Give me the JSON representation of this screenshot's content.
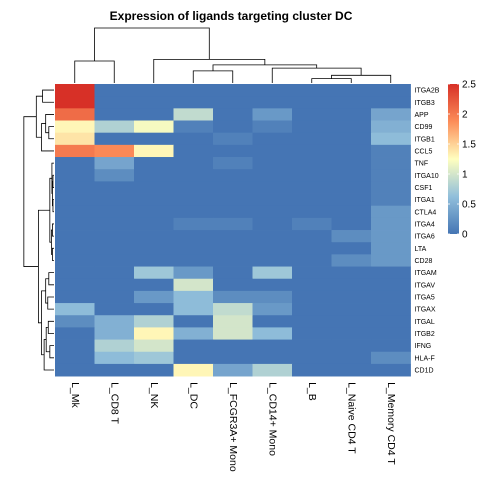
{
  "chart_data": {
    "type": "heatmap",
    "title": "Expression of ligands targeting cluster DC",
    "rows": [
      "ITGA2B",
      "ITGB3",
      "APP",
      "CD99",
      "ITGB1",
      "CCL5",
      "TNF",
      "ITGA10",
      "CSF1",
      "ITGA1",
      "CTLA4",
      "ITGA4",
      "ITGA6",
      "LTA",
      "CD28",
      "ITGAM",
      "ITGAV",
      "ITGA5",
      "ITGAX",
      "ITGAL",
      "ITGB2",
      "IFNG",
      "HLA-F",
      "CD1D"
    ],
    "columns": [
      "L_Mk",
      "L_CD8 T",
      "L_NK",
      "L_DC",
      "L_FCGR3A+ Mono",
      "L_CD14+ Mono",
      "L_B",
      "L_Naive CD4 T",
      "L_Memory CD4 T"
    ],
    "values": [
      [
        2.5,
        0.0,
        0.0,
        0.0,
        0.0,
        0.0,
        0.0,
        0.0,
        0.0
      ],
      [
        2.5,
        0.0,
        0.0,
        0.0,
        0.0,
        0.0,
        0.0,
        0.0,
        0.0
      ],
      [
        2.1,
        0.0,
        0.0,
        0.9,
        0.0,
        0.3,
        0.0,
        0.0,
        0.4
      ],
      [
        1.3,
        0.8,
        1.2,
        0.1,
        0.0,
        0.1,
        0.0,
        0.0,
        0.5
      ],
      [
        1.4,
        0.0,
        0.0,
        0.0,
        0.1,
        0.0,
        0.0,
        0.0,
        0.6
      ],
      [
        2.0,
        1.9,
        1.3,
        0.0,
        0.0,
        0.0,
        0.0,
        0.0,
        0.1
      ],
      [
        0.0,
        0.4,
        0.0,
        0.0,
        0.1,
        0.0,
        0.0,
        0.0,
        0.1
      ],
      [
        0.0,
        0.2,
        0.0,
        0.0,
        0.0,
        0.0,
        0.0,
        0.0,
        0.1
      ],
      [
        0.0,
        0.0,
        0.0,
        0.0,
        0.0,
        0.0,
        0.0,
        0.0,
        0.1
      ],
      [
        0.0,
        0.0,
        0.0,
        0.0,
        0.0,
        0.0,
        0.0,
        0.0,
        0.1
      ],
      [
        0.0,
        0.0,
        0.0,
        0.0,
        0.0,
        0.0,
        0.0,
        0.0,
        0.3
      ],
      [
        0.0,
        0.0,
        0.0,
        0.1,
        0.1,
        0.0,
        0.1,
        0.0,
        0.3
      ],
      [
        0.0,
        0.0,
        0.0,
        0.0,
        0.0,
        0.0,
        0.0,
        0.2,
        0.3
      ],
      [
        0.0,
        0.0,
        0.0,
        0.0,
        0.0,
        0.0,
        0.0,
        0.0,
        0.3
      ],
      [
        0.0,
        0.0,
        0.0,
        0.0,
        0.0,
        0.0,
        0.0,
        0.2,
        0.3
      ],
      [
        0.0,
        0.0,
        0.7,
        0.3,
        0.0,
        0.7,
        0.0,
        0.0,
        0.0
      ],
      [
        0.0,
        0.0,
        0.0,
        1.0,
        0.0,
        0.0,
        0.0,
        0.0,
        0.0
      ],
      [
        0.0,
        0.0,
        0.3,
        0.6,
        0.2,
        0.2,
        0.0,
        0.0,
        0.0
      ],
      [
        0.6,
        0.0,
        0.0,
        0.6,
        0.9,
        0.3,
        0.0,
        0.0,
        0.0
      ],
      [
        0.2,
        0.5,
        0.8,
        0.0,
        1.0,
        0.0,
        0.0,
        0.0,
        0.0
      ],
      [
        0.0,
        0.5,
        1.3,
        0.5,
        1.0,
        0.6,
        0.0,
        0.0,
        0.0
      ],
      [
        0.0,
        0.8,
        1.0,
        0.0,
        0.0,
        0.0,
        0.0,
        0.0,
        0.0
      ],
      [
        0.0,
        0.6,
        0.7,
        0.0,
        0.0,
        0.0,
        0.0,
        0.0,
        0.2
      ],
      [
        0.0,
        0.0,
        0.0,
        1.3,
        0.4,
        0.8,
        0.0,
        0.0,
        0.0
      ]
    ],
    "color_scale": {
      "min": 0,
      "max": 2.5,
      "ticks": [
        "0",
        "0.5",
        "1",
        "1.5",
        "2",
        "2.5"
      ],
      "colors": [
        "#4575B4",
        "#91BFDB",
        "#FFFFBF",
        "#FC8D59",
        "#D73027"
      ]
    },
    "legend_placement": "right",
    "row_dendrogram": true,
    "column_dendrogram": true,
    "grid": false
  }
}
